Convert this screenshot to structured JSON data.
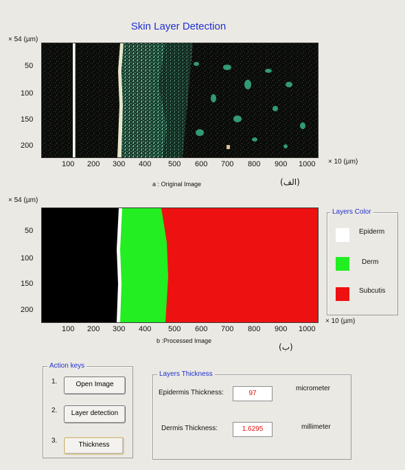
{
  "window": {
    "title": "Skin Layer Detection"
  },
  "plot_a": {
    "y_unit": "× 54 (µm)",
    "x_unit": "× 10 (µm)",
    "y_ticks": [
      "50",
      "100",
      "150",
      "200"
    ],
    "x_ticks": [
      "100",
      "200",
      "300",
      "400",
      "500",
      "600",
      "700",
      "800",
      "900",
      "1000"
    ],
    "caption": "a : Original Image",
    "arabic": "(الف)"
  },
  "plot_b": {
    "y_unit": "× 54 (µm)",
    "x_unit": "× 10 (µm)",
    "y_ticks": [
      "50",
      "100",
      "150",
      "200"
    ],
    "x_ticks": [
      "100",
      "200",
      "300",
      "400",
      "500",
      "600",
      "700",
      "800",
      "900",
      "1000"
    ],
    "caption": "b :Processed Image",
    "arabic": "(ب)"
  },
  "layers_color": {
    "title": "Layers Color",
    "items": [
      {
        "label": "Epiderm",
        "color": "#ffffff"
      },
      {
        "label": "Derm",
        "color": "#22ee22"
      },
      {
        "label": "Subcutis",
        "color": "#ee1111"
      }
    ]
  },
  "action_keys": {
    "title": "Action keys",
    "buttons": [
      {
        "num": "1.",
        "label": "Open Image"
      },
      {
        "num": "2.",
        "label": "Layer detection"
      },
      {
        "num": "3.",
        "label": "Thickness"
      }
    ]
  },
  "thickness": {
    "title": "Layers Thickness",
    "epidermis_label": "Epidermis Thickness:",
    "epidermis_value": "97",
    "epidermis_unit": "micrometer",
    "dermis_label": "Dermis Thickness:",
    "dermis_value": "1.6295",
    "dermis_unit": "millimeter"
  },
  "colors": {
    "title": "#1f2fd0",
    "value": "#e01010",
    "background": "#ebe9e3"
  }
}
